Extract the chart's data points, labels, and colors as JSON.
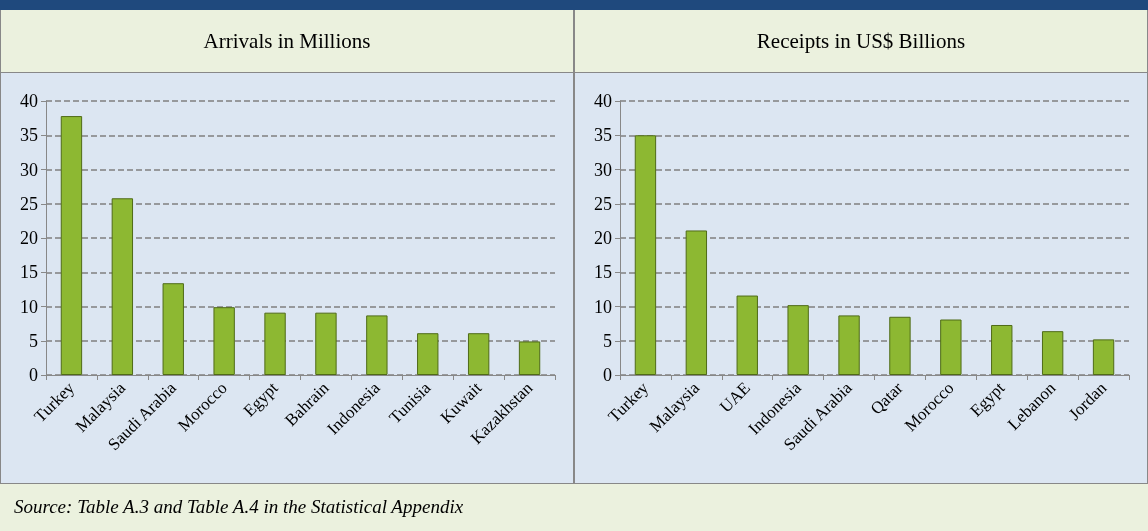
{
  "chart_data": [
    {
      "type": "bar",
      "title": "Arrivals in Millions",
      "categories": [
        "Turkey",
        "Malaysia",
        "Saudi Arabia",
        "Morocco",
        "Egypt",
        "Bahrain",
        "Indonesia",
        "Tunisia",
        "Kuwait",
        "Kazakhstan"
      ],
      "values": [
        37.8,
        25.8,
        13.4,
        9.9,
        9.1,
        9.1,
        8.7,
        6.1,
        6.1,
        4.9
      ],
      "color": "#8db832",
      "ylim": [
        0,
        40
      ],
      "yticks": [
        0,
        5,
        10,
        15,
        20,
        25,
        30,
        35,
        40
      ],
      "grid": "y",
      "annotations": [
        "Source: Table A.3 and Table A.4 in the Statistical Appendix"
      ]
    },
    {
      "type": "bar",
      "title": "Receipts in US$ Billions",
      "categories": [
        "Turkey",
        "Malaysia",
        "UAE",
        "Indonesia",
        "Saudi Arabia",
        "Qatar",
        "Morocco",
        "Egypt",
        "Lebanon",
        "Jordan"
      ],
      "values": [
        35.0,
        21.1,
        11.6,
        10.2,
        8.7,
        8.5,
        8.1,
        7.3,
        6.4,
        5.2
      ],
      "color": "#8db832",
      "ylim": [
        0,
        40
      ],
      "yticks": [
        0,
        5,
        10,
        15,
        20,
        25,
        30,
        35,
        40
      ],
      "grid": "y"
    }
  ]
}
